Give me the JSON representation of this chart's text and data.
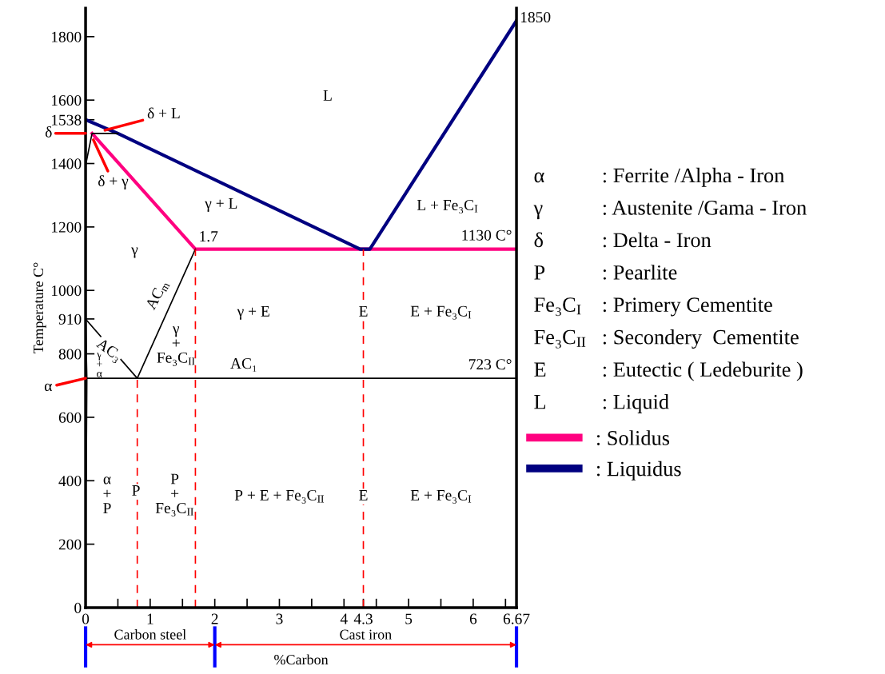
{
  "chart_data": {
    "type": "line",
    "xlabel": "%Carbon",
    "ylabel": "Temperature C°",
    "xlim": [
      0,
      6.67
    ],
    "ylim": [
      0,
      1890
    ],
    "xticks": [
      0,
      {
        "value": 0.5,
        "label": null
      },
      1,
      {
        "value": 1.5,
        "label": null
      },
      2,
      {
        "value": 2.5,
        "label": null
      },
      3,
      {
        "value": 3.5,
        "label": null
      },
      4,
      4.3,
      {
        "value": 4.5,
        "label": null
      },
      5,
      {
        "value": 5.5,
        "label": null
      },
      6,
      {
        "value": 6.5,
        "label": null
      },
      6.67
    ],
    "yticks": [
      0,
      200,
      400,
      600,
      800,
      910,
      1000,
      1200,
      1400,
      1538,
      1600,
      1800
    ],
    "grid": false,
    "legend": "right",
    "marker": "none",
    "series": [
      {
        "name": ": Solidus",
        "color": "#ff0080",
        "x": [
          0.1,
          1.7,
          6.67
        ],
        "values": [
          1495,
          1130,
          1130
        ]
      },
      {
        "name": ": Liquidus",
        "color": "#000080",
        "x": [
          0,
          0.5,
          4.25,
          4.4,
          6.67
        ],
        "values": [
          1538,
          1495,
          1130,
          1130,
          1850
        ]
      },
      {
        "color": "#000000",
        "x": [
          0,
          0.1,
          0.5
        ],
        "values": [
          1394,
          1495,
          1495
        ]
      },
      {
        "color": "#000000",
        "x": [
          0,
          0.8,
          1.7
        ],
        "values": [
          910,
          723,
          1130
        ]
      },
      {
        "color": "#000000",
        "x": [
          0,
          6.67
        ],
        "values": [
          723,
          723
        ]
      },
      {
        "color": "#000000",
        "x": [
          0,
          0.02,
          0.01
        ],
        "values": [
          910,
          723,
          400
        ]
      },
      {
        "color": "#ff0000",
        "line_style": "dashed",
        "x": [
          0.8,
          0.8
        ],
        "values": [
          0,
          723
        ]
      },
      {
        "color": "#ff0000",
        "line_style": "dashed",
        "x": [
          1.7,
          1.7
        ],
        "values": [
          0,
          1130
        ]
      },
      {
        "color": "#ff0000",
        "line_style": "dashed",
        "x": [
          4.3,
          4.3
        ],
        "values": [
          0,
          1130
        ]
      }
    ],
    "annotations": [
      "α : Ferrite /Alpha - Iron",
      "γ : Austenite /Gama - Iron",
      "δ : Delta - Iron",
      "P : Pearlite",
      "Fe₃C$_{I}$ : Primery Cementite",
      "Fe₃C$_{II}$ : Secondery  Cementite",
      "E : Eutectic ( Ledeburite )",
      "L : Liquid",
      "Carbon steel",
      "Cast iron",
      "δ",
      "L",
      "γ + L",
      "L + Fe₃C$_{I}$",
      "γ",
      "AC$_{m}$",
      "γ\n+\nFe₃C$_{II}$",
      "γ\n+\nα",
      "γ + E",
      "E + Fe₃C$_{I}$",
      "α\n+\nP",
      "P\n+\nFe₃C$_{II}$",
      "P + E + Fe₃C$_{II}$",
      "E + Fe₃C$_{I}$",
      "AC₁",
      {
        "text": "1850",
        "x": 6.67,
        "y": 1850
      },
      {
        "text": "α",
        "x": 0,
        "y": 723
      },
      {
        "text": "δ + L",
        "x": 0.3,
        "y": 1505
      },
      {
        "text": "δ + γ",
        "x": 0.12,
        "y": 1475
      },
      {
        "text": "1.7",
        "x": 1.7,
        "y": 1130
      },
      {
        "text": "1130 C°",
        "x": 6.67,
        "y": 1130
      },
      {
        "text": "723 C°",
        "x": 6.67,
        "y": 723
      },
      {
        "text": "AC₃",
        "x": 0.36,
        "y": 810
      },
      {
        "text": "E",
        "x": 4.3,
        "y": 930
      },
      {
        "text": "P",
        "x": 0.78,
        "y": 365
      },
      {
        "text": "E",
        "x": 4.3,
        "y": 350
      }
    ]
  }
}
